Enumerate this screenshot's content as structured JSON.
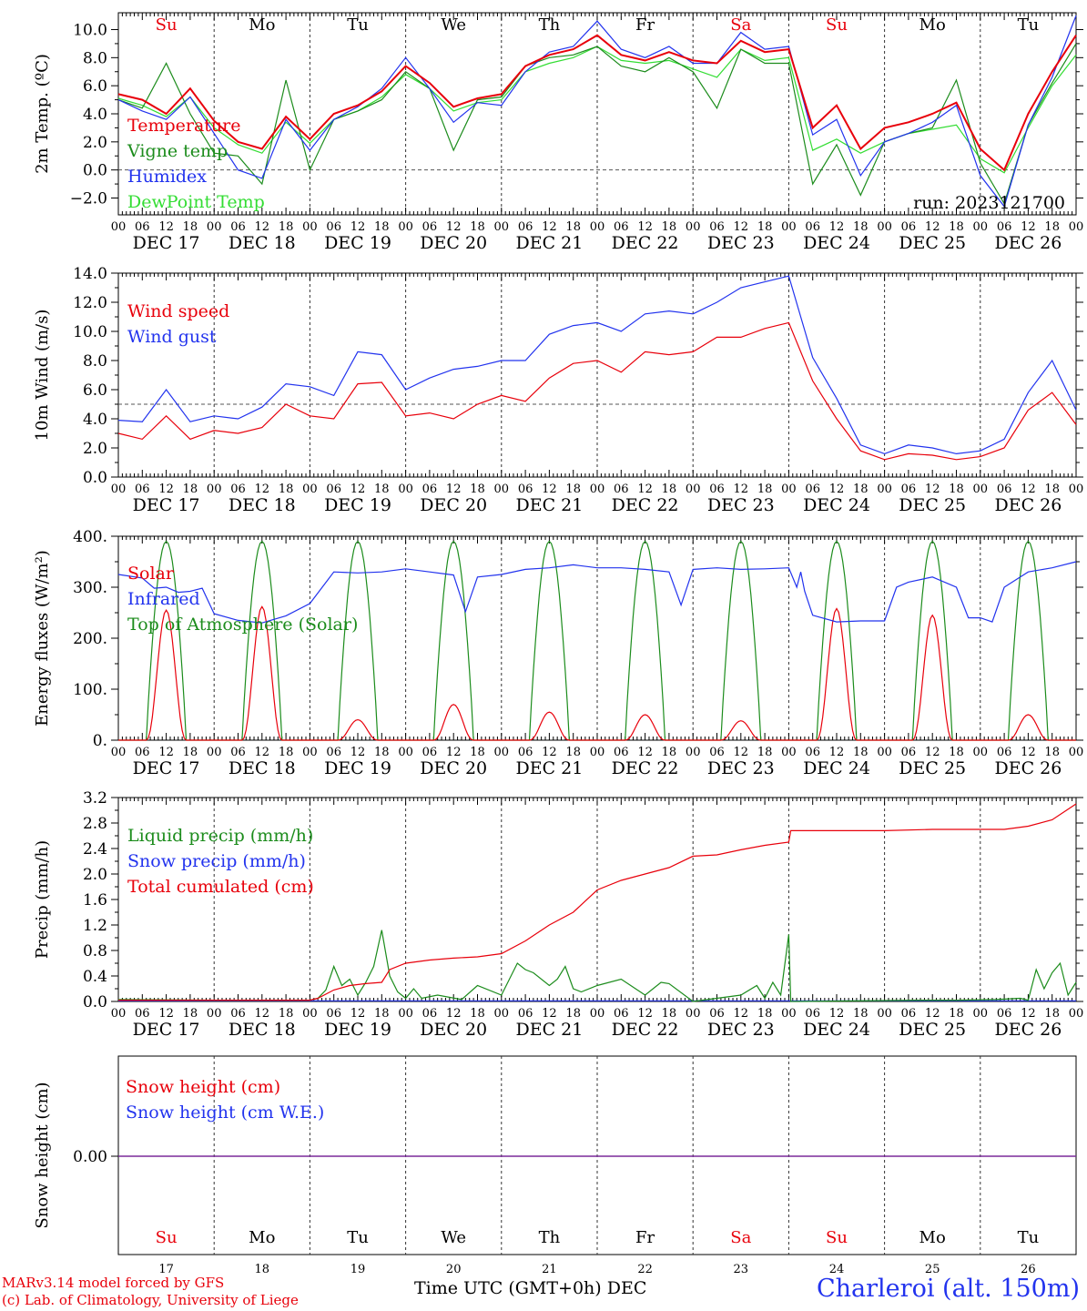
{
  "chart_data": [
    {
      "type": "line",
      "ylabel": "2m Temp. (ºC)",
      "ylim": [
        -3.2,
        11.2
      ],
      "yticks": [
        -2,
        0,
        2,
        4,
        6,
        8,
        10
      ],
      "ytick_labels": [
        "−2.0",
        "0.0",
        "2.0",
        "4.0",
        "6.0",
        "8.0",
        "10.0"
      ],
      "day_labels": [
        "Su",
        "Mo",
        "Tu",
        "We",
        "Th",
        "Fr",
        "Sa",
        "Su",
        "Mo",
        "Tu"
      ],
      "day_label_colors": [
        "#e8000b",
        "#000000",
        "#000000",
        "#000000",
        "#000000",
        "#000000",
        "#e8000b",
        "#e8000b",
        "#000000",
        "#000000"
      ],
      "annotation": "run: 2023121700",
      "reference_line": 0,
      "legend": [
        "Temperature",
        "Vigne temp",
        "Humidex",
        "DewPoint Temp"
      ],
      "series": [
        {
          "name": "Temperature",
          "color": "#e8000b",
          "x": [
            0,
            6,
            12,
            18,
            24,
            30,
            36,
            42,
            48,
            54,
            60,
            66,
            72,
            78,
            84,
            90,
            96,
            102,
            108,
            114,
            120,
            126,
            132,
            138,
            144,
            150,
            156,
            162,
            168,
            174,
            180,
            186,
            192,
            198,
            204,
            210,
            216,
            222,
            228,
            234,
            240
          ],
          "y": [
            5.4,
            5.0,
            4.0,
            5.8,
            3.5,
            2.0,
            1.5,
            3.8,
            2.2,
            4.0,
            4.6,
            5.6,
            7.4,
            6.2,
            4.5,
            5.1,
            5.4,
            7.4,
            8.2,
            8.6,
            9.6,
            8.2,
            7.8,
            8.4,
            7.8,
            7.6,
            9.2,
            8.4,
            8.6,
            3.0,
            4.6,
            1.5,
            3.0,
            3.4,
            4.0,
            4.8,
            1.5,
            0.0,
            4.0,
            7.0,
            9.6
          ]
        },
        {
          "name": "Vigne temp",
          "color": "#1c8c1c",
          "x": [
            0,
            6,
            12,
            18,
            24,
            30,
            36,
            42,
            48,
            54,
            60,
            66,
            72,
            78,
            84,
            90,
            96,
            102,
            108,
            114,
            120,
            126,
            132,
            138,
            144,
            150,
            156,
            162,
            168,
            174,
            180,
            186,
            192,
            198,
            204,
            210,
            216,
            222,
            228,
            234,
            240
          ],
          "y": [
            5.0,
            4.4,
            7.6,
            4.0,
            1.2,
            1.0,
            -1.0,
            6.4,
            0.0,
            3.6,
            4.2,
            5.0,
            7.0,
            5.8,
            1.4,
            5.0,
            5.2,
            7.4,
            8.0,
            8.2,
            8.8,
            7.4,
            7.0,
            8.0,
            7.0,
            4.4,
            8.6,
            7.6,
            7.6,
            -1.0,
            1.8,
            -1.8,
            2.0,
            2.6,
            3.0,
            6.4,
            0.5,
            -2.4,
            3.2,
            6.2,
            9.0
          ]
        },
        {
          "name": "Humidex",
          "color": "#2233ee",
          "x": [
            0,
            6,
            12,
            18,
            24,
            30,
            36,
            42,
            48,
            54,
            60,
            66,
            72,
            78,
            84,
            90,
            96,
            102,
            108,
            114,
            120,
            126,
            132,
            138,
            144,
            150,
            156,
            162,
            168,
            174,
            180,
            186,
            192,
            198,
            204,
            210,
            216,
            222,
            228,
            234,
            240
          ],
          "y": [
            5.0,
            4.2,
            3.6,
            5.2,
            2.6,
            0.0,
            -0.6,
            3.6,
            1.4,
            3.6,
            4.5,
            5.8,
            8.0,
            5.8,
            3.4,
            4.8,
            4.6,
            7.0,
            8.4,
            8.8,
            10.6,
            8.6,
            8.0,
            8.8,
            7.6,
            7.6,
            9.8,
            8.6,
            8.8,
            2.5,
            3.6,
            -0.4,
            2.0,
            2.6,
            3.4,
            4.6,
            -0.4,
            -2.6,
            3.2,
            6.6,
            11.0
          ]
        },
        {
          "name": "DewPoint Temp",
          "color": "#33dd33",
          "x": [
            0,
            6,
            12,
            18,
            24,
            30,
            36,
            42,
            48,
            54,
            60,
            66,
            72,
            78,
            84,
            90,
            96,
            102,
            108,
            114,
            120,
            126,
            132,
            138,
            144,
            150,
            156,
            162,
            168,
            174,
            180,
            186,
            192,
            198,
            204,
            210,
            216,
            222,
            228,
            234,
            240
          ],
          "y": [
            5.1,
            4.6,
            3.8,
            5.2,
            3.0,
            1.8,
            1.2,
            3.4,
            1.9,
            3.6,
            4.2,
            5.2,
            6.8,
            5.8,
            4.2,
            4.8,
            5.0,
            7.0,
            7.6,
            8.0,
            8.8,
            7.8,
            7.6,
            7.8,
            7.2,
            6.6,
            8.6,
            7.8,
            8.0,
            1.4,
            2.2,
            1.2,
            2.0,
            2.6,
            2.9,
            3.2,
            0.8,
            -0.2,
            3.0,
            6.0,
            8.2
          ]
        }
      ]
    },
    {
      "type": "line",
      "ylabel": "10m Wind (m/s)",
      "ylim": [
        0,
        14
      ],
      "yticks": [
        0,
        2,
        4,
        6,
        8,
        10,
        12,
        14
      ],
      "ytick_labels": [
        "0.0",
        "2.0",
        "4.0",
        "6.0",
        "8.0",
        "10.0",
        "12.0",
        "14.0"
      ],
      "reference_line": 5,
      "legend": [
        "Wind speed",
        "Wind gust"
      ],
      "series": [
        {
          "name": "Wind speed",
          "color": "#e8000b",
          "x": [
            0,
            6,
            12,
            18,
            24,
            30,
            36,
            42,
            48,
            54,
            60,
            66,
            72,
            78,
            84,
            90,
            96,
            102,
            108,
            114,
            120,
            126,
            132,
            138,
            144,
            150,
            156,
            162,
            168,
            174,
            180,
            186,
            192,
            198,
            204,
            210,
            216,
            222,
            228,
            234,
            240
          ],
          "y": [
            3.0,
            2.6,
            4.2,
            2.6,
            3.2,
            3.0,
            3.4,
            5.0,
            4.2,
            4.0,
            6.4,
            6.5,
            4.2,
            4.4,
            4.0,
            5.0,
            5.6,
            5.2,
            6.8,
            7.8,
            8.0,
            7.2,
            8.6,
            8.4,
            8.6,
            9.6,
            9.6,
            10.2,
            10.6,
            6.6,
            4.0,
            1.8,
            1.2,
            1.6,
            1.5,
            1.2,
            1.4,
            2.0,
            4.6,
            5.8,
            3.6
          ]
        },
        {
          "name": "Wind gust",
          "color": "#2233ee",
          "x": [
            0,
            6,
            12,
            18,
            24,
            30,
            36,
            42,
            48,
            54,
            60,
            66,
            72,
            78,
            84,
            90,
            96,
            102,
            108,
            114,
            120,
            126,
            132,
            138,
            144,
            150,
            156,
            162,
            168,
            174,
            180,
            186,
            192,
            198,
            204,
            210,
            216,
            222,
            228,
            234,
            240
          ],
          "y": [
            3.9,
            3.8,
            6.0,
            3.8,
            4.2,
            4.0,
            4.8,
            6.4,
            6.2,
            5.6,
            8.6,
            8.4,
            6.0,
            6.8,
            7.4,
            7.6,
            8.0,
            8.0,
            9.8,
            10.4,
            10.6,
            10.0,
            11.2,
            11.4,
            11.2,
            12.0,
            13.0,
            13.4,
            13.8,
            8.2,
            5.4,
            2.2,
            1.6,
            2.2,
            2.0,
            1.6,
            1.8,
            2.6,
            5.8,
            8.0,
            4.6
          ]
        }
      ]
    },
    {
      "type": "line",
      "ylabel": "Energy fluxes (W/m²)",
      "ylim": [
        0,
        400
      ],
      "yticks": [
        0,
        100,
        200,
        300,
        400
      ],
      "ytick_labels": [
        "0.",
        "100.",
        "200.",
        "300.",
        "400."
      ],
      "legend": [
        "Solar",
        "Infrared",
        "Top of Atmosphere (Solar)"
      ],
      "solar_noon_peaks": [
        255,
        262,
        40,
        70,
        55,
        50,
        38,
        258,
        245,
        50
      ],
      "toa_peak": 390,
      "series": [
        {
          "name": "Infrared",
          "color": "#2233ee",
          "x": [
            0,
            6,
            9,
            12,
            15,
            18,
            21,
            24,
            30,
            36,
            42,
            48,
            54,
            60,
            66,
            72,
            78,
            84,
            87,
            90,
            96,
            102,
            108,
            114,
            120,
            126,
            132,
            138,
            141,
            144,
            150,
            156,
            162,
            168,
            170,
            171,
            172,
            174,
            180,
            186,
            192,
            195,
            198,
            204,
            210,
            213,
            216,
            219,
            222,
            228,
            234,
            240
          ],
          "y": [
            325,
            318,
            298,
            300,
            290,
            292,
            298,
            248,
            235,
            230,
            244,
            268,
            330,
            328,
            330,
            336,
            330,
            324,
            252,
            320,
            325,
            335,
            338,
            344,
            338,
            338,
            335,
            330,
            265,
            335,
            338,
            335,
            336,
            338,
            300,
            330,
            292,
            245,
            232,
            234,
            234,
            300,
            310,
            320,
            300,
            240,
            240,
            232,
            300,
            330,
            338,
            350
          ]
        },
        {
          "name": "Top of Atmosphere (Solar)",
          "color": "#1c8c1c",
          "x": [
            0,
            1
          ],
          "y": [
            0,
            0
          ]
        },
        {
          "name": "Solar",
          "color": "#e8000b",
          "x": [
            0,
            1
          ],
          "y": [
            0,
            0
          ]
        }
      ]
    },
    {
      "type": "line",
      "ylabel": "Precip (mm/h)",
      "ylim": [
        0,
        3.2
      ],
      "yticks": [
        0,
        0.4,
        0.8,
        1.2,
        1.6,
        2.0,
        2.4,
        2.8,
        3.2
      ],
      "ytick_labels": [
        "0.0",
        "0.4",
        "0.8",
        "1.2",
        "1.6",
        "2.0",
        "2.4",
        "2.8",
        "3.2"
      ],
      "legend": [
        "Liquid precip (mm/h)",
        "Snow precip (mm/h)",
        "Total cumulated (cm)"
      ],
      "series": [
        {
          "name": "Liquid precip (mm/h)",
          "color": "#1c8c1c",
          "x": [
            0,
            24,
            48,
            50,
            52,
            54,
            56,
            58,
            60,
            62,
            64,
            66,
            68,
            70,
            72,
            74,
            76,
            80,
            86,
            90,
            96,
            100,
            102,
            104,
            108,
            110,
            112,
            114,
            116,
            120,
            126,
            132,
            136,
            138,
            144,
            150,
            156,
            160,
            162,
            164,
            166,
            168,
            168.5,
            170,
            200,
            210,
            220,
            226,
            228,
            230,
            232,
            234,
            236,
            238,
            240
          ],
          "y": [
            0.03,
            0.02,
            0.02,
            0.05,
            0.18,
            0.55,
            0.25,
            0.35,
            0.1,
            0.3,
            0.55,
            1.12,
            0.4,
            0.15,
            0.05,
            0.2,
            0.05,
            0.1,
            0.03,
            0.25,
            0.1,
            0.6,
            0.5,
            0.45,
            0.25,
            0.35,
            0.55,
            0.2,
            0.15,
            0.25,
            0.35,
            0.1,
            0.3,
            0.28,
            0.0,
            0.05,
            0.1,
            0.25,
            0.05,
            0.3,
            0.1,
            1.05,
            0.0,
            0.0,
            0.02,
            0.02,
            0.03,
            0.05,
            0.02,
            0.5,
            0.2,
            0.45,
            0.6,
            0.1,
            0.3
          ]
        },
        {
          "name": "Snow precip (mm/h)",
          "color": "#2233ee",
          "x": [
            0,
            240
          ],
          "y": [
            0.01,
            0.01
          ]
        },
        {
          "name": "Total cumulated (cm)",
          "color": "#e8000b",
          "x": [
            0,
            48,
            50,
            54,
            58,
            62,
            66,
            68,
            72,
            78,
            84,
            90,
            96,
            102,
            108,
            114,
            120,
            126,
            132,
            138,
            144,
            150,
            156,
            162,
            168,
            168.5,
            180,
            192,
            204,
            216,
            222,
            228,
            234,
            240
          ],
          "y": [
            0.02,
            0.02,
            0.05,
            0.18,
            0.25,
            0.28,
            0.3,
            0.5,
            0.6,
            0.65,
            0.68,
            0.7,
            0.75,
            0.95,
            1.2,
            1.4,
            1.75,
            1.9,
            2.0,
            2.1,
            2.28,
            2.3,
            2.38,
            2.45,
            2.5,
            2.68,
            2.68,
            2.68,
            2.7,
            2.7,
            2.7,
            2.75,
            2.85,
            3.1
          ]
        }
      ]
    },
    {
      "type": "line",
      "ylabel": "Snow height (cm)",
      "ytick_labels": [
        "0.00"
      ],
      "legend": [
        "Snow height (cm)",
        "Snow height (cm W.E.)"
      ],
      "day_labels": [
        "Su",
        "Mo",
        "Tu",
        "We",
        "Th",
        "Fr",
        "Sa",
        "Su",
        "Mo",
        "Tu"
      ],
      "day_label_colors": [
        "#e8000b",
        "#000000",
        "#000000",
        "#000000",
        "#000000",
        "#000000",
        "#e8000b",
        "#e8000b",
        "#000000",
        "#000000"
      ],
      "day_numbers": [
        "17",
        "18",
        "19",
        "20",
        "21",
        "22",
        "23",
        "24",
        "25",
        "26"
      ],
      "series": [
        {
          "name": "Snow height (cm)",
          "color": "#e8000b",
          "x": [
            0,
            240
          ],
          "y": [
            0,
            0
          ]
        },
        {
          "name": "Snow height (cm W.E.)",
          "color": "#2233ee",
          "x": [
            0,
            240
          ],
          "y": [
            0,
            0
          ]
        }
      ]
    }
  ],
  "axis": {
    "hour_labels": [
      "00",
      "06",
      "12",
      "18"
    ],
    "final_hour_label": "00",
    "date_labels": [
      "DEC 17",
      "DEC 18",
      "DEC 19",
      "DEC 20",
      "DEC 21",
      "DEC 22",
      "DEC 23",
      "DEC 24",
      "DEC 25",
      "DEC 26"
    ],
    "xlim_hours": [
      0,
      240
    ]
  },
  "footer": {
    "model_line": "MARv3.14 model forced by GFS",
    "copyright_line": "(c) Lab. of Climatology, University of Liege",
    "xlabel": "Time UTC (GMT+0h)",
    "month": "DEC",
    "station": "Charleroi (alt. 150m)"
  },
  "colors": {
    "red": "#e8000b",
    "green": "#1c8c1c",
    "blue": "#2233ee",
    "light_green": "#33dd33",
    "purple": "#7a2a9a"
  }
}
